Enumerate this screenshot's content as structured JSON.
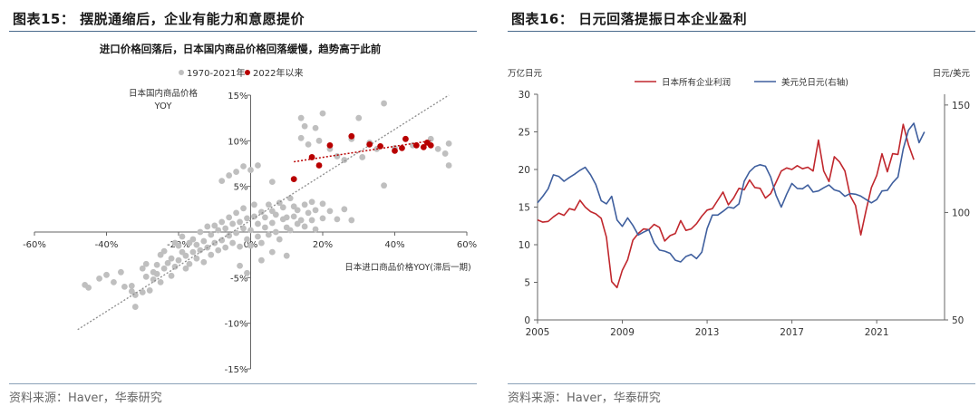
{
  "left_panel": {
    "title": "图表15：  摆脱通缩后，企业有能力和意愿提价",
    "source": "资料来源：Haver，华泰研究"
  },
  "right_panel": {
    "title": "图表16：  日元回落提振日本企业盈利",
    "source": "资料来源：Haver，华泰研究"
  },
  "chart_data": [
    {
      "type": "scatter",
      "title": "进口价格回落后，日本国内商品价格回落缓慢，趋势高于此前",
      "ylabel_line1": "日本国内商品价格",
      "ylabel_line2": "YOY",
      "xlabel": "日本进口商品价格YOY(滞后一期)",
      "xlim": [
        -60,
        60
      ],
      "ylim": [
        -15,
        15
      ],
      "x_ticks": [
        -60,
        -40,
        -20,
        0,
        20,
        40,
        60
      ],
      "x_tick_labels": [
        "-60%",
        "-40%",
        "-20%",
        "0%",
        "20%",
        "40%",
        "60%"
      ],
      "y_ticks": [
        -15,
        -10,
        -5,
        0,
        5,
        10,
        15
      ],
      "y_tick_labels": [
        "-15%",
        "-10%",
        "-5%",
        "0%",
        "5%",
        "10%",
        "15%"
      ],
      "legend": [
        "1970-2021年",
        "2022年以来"
      ],
      "legend_position": "top-center",
      "colors": {
        "hist": "#bfbfbf",
        "recent": "#b80000",
        "trend_hist": "#8c8c8c",
        "trend_recent": "#b80000"
      },
      "series": [
        {
          "name": "1970-2021年",
          "points": [
            [
              -46,
              -5.8
            ],
            [
              -45,
              -6.1
            ],
            [
              -42,
              -5.1
            ],
            [
              -40,
              -4.7
            ],
            [
              -38,
              -5.5
            ],
            [
              -36,
              -4.4
            ],
            [
              -35,
              -6.0
            ],
            [
              -33,
              -5.9
            ],
            [
              -33,
              -6.5
            ],
            [
              -32,
              -8.2
            ],
            [
              -32,
              -6.9
            ],
            [
              -30,
              -4.0
            ],
            [
              -30,
              -6.6
            ],
            [
              -29,
              -3.5
            ],
            [
              -29,
              -4.9
            ],
            [
              -28,
              -6.4
            ],
            [
              -27,
              -4.4
            ],
            [
              -27,
              -5.2
            ],
            [
              -26,
              -3.6
            ],
            [
              -26,
              -4.6
            ],
            [
              -25,
              -5.5
            ],
            [
              -25,
              -2.5
            ],
            [
              -24,
              -4.0
            ],
            [
              -24,
              -2.1
            ],
            [
              -23,
              -3.4
            ],
            [
              -22,
              -4.8
            ],
            [
              -22,
              -2.9
            ],
            [
              -21,
              -1.2
            ],
            [
              -21,
              -3.8
            ],
            [
              -20,
              -3.1
            ],
            [
              -20,
              -1.5
            ],
            [
              -19,
              -2.2
            ],
            [
              -19,
              -0.5
            ],
            [
              -18,
              -4.0
            ],
            [
              -18,
              -2.6
            ],
            [
              -17,
              -1.2
            ],
            [
              -17,
              -3.5
            ],
            [
              -16,
              -0.8
            ],
            [
              -16,
              -2.2
            ],
            [
              -15,
              -2.9
            ],
            [
              -15,
              -1.4
            ],
            [
              -14,
              0.0
            ],
            [
              -14,
              -2.0
            ],
            [
              -13,
              -1.0
            ],
            [
              -13,
              -3.3
            ],
            [
              -12,
              0.6
            ],
            [
              -12,
              -1.7
            ],
            [
              -11,
              -0.3
            ],
            [
              -11,
              -2.5
            ],
            [
              -10,
              -1.2
            ],
            [
              -10,
              0.7
            ],
            [
              -9,
              -2.0
            ],
            [
              -9,
              0.2
            ],
            [
              -8,
              -0.9
            ],
            [
              -8,
              1.1
            ],
            [
              -7,
              -1.7
            ],
            [
              -7,
              0.4
            ],
            [
              -6,
              -0.4
            ],
            [
              -6,
              1.6
            ],
            [
              -5,
              -1.2
            ],
            [
              -5,
              0.9
            ],
            [
              -4,
              2.1
            ],
            [
              -4,
              -0.1
            ],
            [
              -3,
              1.1
            ],
            [
              -3,
              -1.6
            ],
            [
              -2,
              0.4
            ],
            [
              -2,
              2.6
            ],
            [
              -1,
              -0.8
            ],
            [
              -1,
              1.5
            ],
            [
              0,
              0.2
            ],
            [
              0,
              -1.5
            ],
            [
              1,
              1.7
            ],
            [
              1,
              3.0
            ],
            [
              2,
              -0.5
            ],
            [
              2,
              0.9
            ],
            [
              3,
              2.2
            ],
            [
              3,
              -1.2
            ],
            [
              4,
              0.5
            ],
            [
              4,
              1.6
            ],
            [
              5,
              3.0
            ],
            [
              5,
              -0.3
            ],
            [
              6,
              1.0
            ],
            [
              6,
              2.3
            ],
            [
              7,
              0.0
            ],
            [
              7,
              1.9
            ],
            [
              8,
              3.2
            ],
            [
              8,
              -0.8
            ],
            [
              9,
              1.4
            ],
            [
              9,
              2.7
            ],
            [
              10,
              0.5
            ],
            [
              10,
              1.6
            ],
            [
              11,
              3.7
            ],
            [
              11,
              0.2
            ],
            [
              12,
              1.7
            ],
            [
              12,
              2.8
            ],
            [
              13,
              0.9
            ],
            [
              13,
              2.4
            ],
            [
              14,
              1.3
            ],
            [
              15,
              3.0
            ],
            [
              15,
              0.6
            ],
            [
              16,
              2.1
            ],
            [
              17,
              1.3
            ],
            [
              17,
              3.3
            ],
            [
              18,
              0.3
            ],
            [
              18,
              2.4
            ],
            [
              20,
              1.5
            ],
            [
              20,
              3.1
            ],
            [
              22,
              2.3
            ],
            [
              24,
              1.4
            ],
            [
              26,
              2.5
            ],
            [
              28,
              1.3
            ],
            [
              -8,
              5.6
            ],
            [
              -6,
              6.2
            ],
            [
              -4,
              6.6
            ],
            [
              -2,
              7.2
            ],
            [
              0,
              6.8
            ],
            [
              2,
              7.3
            ],
            [
              6,
              5.5
            ],
            [
              14,
              10.3
            ],
            [
              14,
              12.5
            ],
            [
              15,
              11.6
            ],
            [
              16,
              9.6
            ],
            [
              18,
              11.4
            ],
            [
              19,
              10.0
            ],
            [
              20,
              13.0
            ],
            [
              22,
              9.1
            ],
            [
              24,
              8.3
            ],
            [
              26,
              7.9
            ],
            [
              28,
              10.2
            ],
            [
              30,
              12.5
            ],
            [
              31,
              8.2
            ],
            [
              33,
              9.8
            ],
            [
              35,
              9.1
            ],
            [
              37,
              14.1
            ],
            [
              37,
              5.1
            ],
            [
              40,
              9.2
            ],
            [
              45,
              9.5
            ],
            [
              50,
              10.2
            ],
            [
              52,
              9.1
            ],
            [
              54,
              8.6
            ],
            [
              55,
              7.3
            ],
            [
              55,
              9.7
            ],
            [
              -1,
              -4.5
            ],
            [
              3,
              -3.1
            ],
            [
              6,
              -2.2
            ],
            [
              -3,
              -3.7
            ],
            [
              10,
              -2.6
            ]
          ]
        },
        {
          "name": "2022年以来",
          "points": [
            [
              19,
              7.3
            ],
            [
              22,
              9.5
            ],
            [
              28,
              10.5
            ],
            [
              33,
              9.6
            ],
            [
              36,
              9.4
            ],
            [
              40,
              8.9
            ],
            [
              42,
              9.2
            ],
            [
              43,
              10.2
            ],
            [
              46,
              9.5
            ],
            [
              48,
              9.3
            ],
            [
              49,
              9.8
            ],
            [
              50,
              9.5
            ],
            [
              12,
              5.8
            ],
            [
              17,
              8.2
            ]
          ]
        }
      ],
      "trend_lines": [
        {
          "name": "1970-2021年",
          "x": [
            -48,
            55
          ],
          "y": [
            -10.7,
            15.0
          ]
        },
        {
          "name": "2022年以来",
          "x": [
            12,
            50
          ],
          "y": [
            7.7,
            10.0
          ]
        }
      ]
    },
    {
      "type": "line",
      "left_axis_label": "万亿日元",
      "right_axis_label": "日元/美元",
      "xlim": [
        2005,
        2024.2
      ],
      "ylim_left": [
        0,
        30
      ],
      "ylim_right": [
        50,
        155
      ],
      "x_ticks": [
        2005,
        2009,
        2013,
        2017,
        2021
      ],
      "y_ticks_left": [
        0,
        5,
        10,
        15,
        20,
        25,
        30
      ],
      "y_ticks_right": [
        50,
        100,
        150
      ],
      "legend_position": "top-center",
      "series": [
        {
          "name": "日本所有企业利润",
          "axis": "left",
          "color": "#c0272d",
          "x": [
            2005.0,
            2005.25,
            2005.5,
            2005.75,
            2006.0,
            2006.25,
            2006.5,
            2006.75,
            2007.0,
            2007.25,
            2007.5,
            2007.75,
            2008.0,
            2008.25,
            2008.5,
            2008.75,
            2009.0,
            2009.25,
            2009.5,
            2009.75,
            2010.0,
            2010.25,
            2010.5,
            2010.75,
            2011.0,
            2011.25,
            2011.5,
            2011.75,
            2012.0,
            2012.25,
            2012.5,
            2012.75,
            2013.0,
            2013.25,
            2013.5,
            2013.75,
            2014.0,
            2014.25,
            2014.5,
            2014.75,
            2015.0,
            2015.25,
            2015.5,
            2015.75,
            2016.0,
            2016.25,
            2016.5,
            2016.75,
            2017.0,
            2017.25,
            2017.5,
            2017.75,
            2018.0,
            2018.25,
            2018.5,
            2018.75,
            2019.0,
            2019.25,
            2019.5,
            2019.75,
            2020.0,
            2020.25,
            2020.5,
            2020.75,
            2021.0,
            2021.25,
            2021.5,
            2021.75,
            2022.0,
            2022.25,
            2022.5,
            2022.75,
            2023.0,
            2023.25
          ],
          "y": [
            13.3,
            13.0,
            13.1,
            13.7,
            14.2,
            13.9,
            14.8,
            14.6,
            15.9,
            15.0,
            14.4,
            14.1,
            13.5,
            11.0,
            5.1,
            4.3,
            6.6,
            8.0,
            10.6,
            11.5,
            12.1,
            12.0,
            12.7,
            12.3,
            10.5,
            11.2,
            11.5,
            13.2,
            11.9,
            12.1,
            12.8,
            13.8,
            14.6,
            14.8,
            15.9,
            17.0,
            15.3,
            16.2,
            17.5,
            17.3,
            18.6,
            17.6,
            17.5,
            16.2,
            16.8,
            18.3,
            19.8,
            20.2,
            20.0,
            20.5,
            20.1,
            20.3,
            19.8,
            23.9,
            19.8,
            18.4,
            21.7,
            21.0,
            19.8,
            16.5,
            15.2,
            11.3,
            14.6,
            17.6,
            19.2,
            22.1,
            19.7,
            22.1,
            22.0,
            26.0,
            23.3,
            21.3,
            null,
            null
          ]
        },
        {
          "name": "美元兑日元(右轴)",
          "axis": "right",
          "color": "#3f5f9e",
          "x": [
            2005.0,
            2005.25,
            2005.5,
            2005.75,
            2006.0,
            2006.25,
            2006.5,
            2006.75,
            2007.0,
            2007.25,
            2007.5,
            2007.75,
            2008.0,
            2008.25,
            2008.5,
            2008.75,
            2009.0,
            2009.25,
            2009.5,
            2009.75,
            2010.0,
            2010.25,
            2010.5,
            2010.75,
            2011.0,
            2011.25,
            2011.5,
            2011.75,
            2012.0,
            2012.25,
            2012.5,
            2012.75,
            2013.0,
            2013.25,
            2013.5,
            2013.75,
            2014.0,
            2014.25,
            2014.5,
            2014.75,
            2015.0,
            2015.25,
            2015.5,
            2015.75,
            2016.0,
            2016.25,
            2016.5,
            2016.75,
            2017.0,
            2017.25,
            2017.5,
            2017.75,
            2018.0,
            2018.25,
            2018.5,
            2018.75,
            2019.0,
            2019.25,
            2019.5,
            2019.75,
            2020.0,
            2020.25,
            2020.5,
            2020.75,
            2021.0,
            2021.25,
            2021.5,
            2021.75,
            2022.0,
            2022.25,
            2022.5,
            2022.75,
            2023.0,
            2023.25
          ],
          "y": [
            104.5,
            107.5,
            111.0,
            117.5,
            116.8,
            114.5,
            116.3,
            117.8,
            119.6,
            121.0,
            117.5,
            113.0,
            105.5,
            104.0,
            107.5,
            96.5,
            93.5,
            97.5,
            94.0,
            89.5,
            90.8,
            92.0,
            85.8,
            82.5,
            82.0,
            81.0,
            77.8,
            77.0,
            79.5,
            80.5,
            78.5,
            81.5,
            92.5,
            98.8,
            98.8,
            100.5,
            102.5,
            102.0,
            104.0,
            114.5,
            119.0,
            121.3,
            122.2,
            121.5,
            116.5,
            108.0,
            102.5,
            108.5,
            113.5,
            111.2,
            111.0,
            112.8,
            109.5,
            110.0,
            111.5,
            112.8,
            110.5,
            109.8,
            107.5,
            108.8,
            108.5,
            107.6,
            106.0,
            104.5,
            106.0,
            110.0,
            110.3,
            113.8,
            116.5,
            129.5,
            138.3,
            141.5,
            132.5,
            137.5
          ]
        }
      ]
    }
  ]
}
